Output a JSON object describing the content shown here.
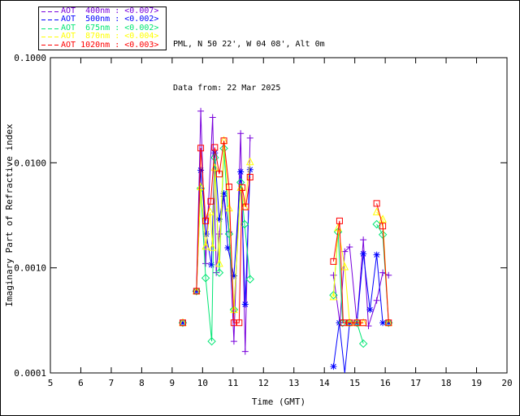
{
  "header": {
    "line1": "PML, N 50 22', W 04 08', Alt 0m",
    "line2": "Data from: 22 Mar 2025"
  },
  "legend": {
    "entries": [
      {
        "text": "AOT  400nm : <0.007>",
        "color": "#7800DC"
      },
      {
        "text": "AOT  500nm : <0.002>",
        "color": "#0000FF"
      },
      {
        "text": "AOT  675nm : <0.002>",
        "color": "#00E673"
      },
      {
        "text": "AOT  870nm : <0.004>",
        "color": "#FFFF00"
      },
      {
        "text": "AOT 1020nm : <0.003>",
        "color": "#FF0000"
      }
    ]
  },
  "chart_data": {
    "type": "line",
    "title": "",
    "xlabel": "Time (GMT)",
    "ylabel": "Imaginary Part of Refractive index",
    "xlim": [
      5,
      20
    ],
    "ylim": [
      0.0001,
      0.1
    ],
    "yscale": "log",
    "grid": false,
    "legend_position": "top-left",
    "x_ticks": [
      5,
      6,
      7,
      8,
      9,
      10,
      11,
      12,
      13,
      14,
      15,
      16,
      17,
      18,
      19,
      20
    ],
    "y_ticks": [
      {
        "value": 0.1,
        "label": "0.1000"
      },
      {
        "value": 0.01,
        "label": "0.0100"
      },
      {
        "value": 0.001,
        "label": "0.0010"
      },
      {
        "value": 0.0001,
        "label": "0.0001"
      }
    ],
    "gap_break_hours": 0.4,
    "series": [
      {
        "name": "AOT 400nm",
        "wavelength": "400nm",
        "aot_value": "<0.007>",
        "color": "#7800DC",
        "marker": "plus",
        "points": [
          [
            9.35,
            0.0003
          ],
          [
            9.8,
            0.0006
          ],
          [
            9.94,
            0.031
          ],
          [
            10.1,
            0.0011
          ],
          [
            10.33,
            0.027
          ],
          [
            10.45,
            0.0009
          ],
          [
            10.55,
            0.0021
          ],
          [
            10.7,
            0.0048
          ],
          [
            10.87,
            0.0022
          ],
          [
            11.03,
            0.0002
          ],
          [
            11.25,
            0.019
          ],
          [
            11.4,
            0.00016
          ],
          [
            11.56,
            0.0172
          ],
          [
            14.3,
            0.00085
          ],
          [
            14.51,
            0.0003
          ],
          [
            14.67,
            0.00143
          ],
          [
            14.83,
            0.00158
          ],
          [
            15.07,
            0.0003
          ],
          [
            15.28,
            0.00185
          ],
          [
            15.45,
            0.00028
          ],
          [
            15.72,
            0.00049
          ],
          [
            15.92,
            0.0009
          ],
          [
            16.11,
            0.00085
          ]
        ]
      },
      {
        "name": "AOT 500nm",
        "wavelength": "500nm",
        "aot_value": "<0.002>",
        "color": "#0000FF",
        "marker": "asterisk",
        "points": [
          [
            9.35,
            0.0003
          ],
          [
            9.8,
            0.0006
          ],
          [
            9.94,
            0.0085
          ],
          [
            10.12,
            0.0021
          ],
          [
            10.29,
            0.00107
          ],
          [
            10.4,
            0.0124
          ],
          [
            10.55,
            0.0029
          ],
          [
            10.7,
            0.0051
          ],
          [
            10.83,
            0.00155
          ],
          [
            11.03,
            0.00084
          ],
          [
            11.25,
            0.0082
          ],
          [
            11.4,
            0.00045
          ],
          [
            11.56,
            0.0086
          ],
          [
            14.3,
            0.000115
          ],
          [
            14.49,
            0.0003
          ],
          [
            14.67,
            6e-05
          ],
          [
            14.83,
            0.0003
          ],
          [
            15.07,
            0.0003
          ],
          [
            15.28,
            0.00136
          ],
          [
            15.5,
            0.0004
          ],
          [
            15.72,
            0.00133
          ],
          [
            15.92,
            0.0003
          ],
          [
            16.11,
            0.0003
          ]
        ]
      },
      {
        "name": "AOT 675nm",
        "wavelength": "675nm",
        "aot_value": "<0.002>",
        "color": "#00E673",
        "marker": "diamond",
        "points": [
          [
            9.35,
            0.0003
          ],
          [
            9.8,
            0.0006
          ],
          [
            9.94,
            0.0057
          ],
          [
            10.1,
            0.0008
          ],
          [
            10.3,
            0.0002
          ],
          [
            10.4,
            0.0112
          ],
          [
            10.55,
            0.0009
          ],
          [
            10.7,
            0.0137
          ],
          [
            10.87,
            0.0021
          ],
          [
            11.03,
            0.0004
          ],
          [
            11.25,
            0.0065
          ],
          [
            11.38,
            0.0026
          ],
          [
            11.56,
            0.00078
          ],
          [
            14.3,
            0.00055
          ],
          [
            14.45,
            0.0022
          ],
          [
            14.6,
            0.0003
          ],
          [
            14.83,
            0.0003
          ],
          [
            15.07,
            0.0003
          ],
          [
            15.28,
            0.00019
          ],
          [
            15.72,
            0.0026
          ],
          [
            15.92,
            0.00207
          ],
          [
            16.11,
            0.0003
          ]
        ]
      },
      {
        "name": "AOT 870nm",
        "wavelength": "870nm",
        "aot_value": "<0.004>",
        "color": "#FFFF00",
        "marker": "triangle",
        "points": [
          [
            9.35,
            0.0003
          ],
          [
            9.8,
            0.0006
          ],
          [
            9.94,
            0.0059
          ],
          [
            10.1,
            0.0016
          ],
          [
            10.25,
            0.0034
          ],
          [
            10.33,
            0.00156
          ],
          [
            10.4,
            0.009
          ],
          [
            10.55,
            0.0011
          ],
          [
            10.7,
            0.0163
          ],
          [
            10.87,
            0.0037
          ],
          [
            11.03,
            0.0004
          ],
          [
            11.25,
            0.0058
          ],
          [
            11.38,
            0.0038
          ],
          [
            11.56,
            0.0102
          ],
          [
            14.3,
            0.00053
          ],
          [
            14.45,
            0.0024
          ],
          [
            14.67,
            0.00102
          ],
          [
            14.83,
            0.0003
          ],
          [
            15.07,
            0.0003
          ],
          [
            15.28,
            0.0003
          ],
          [
            15.72,
            0.0034
          ],
          [
            15.92,
            0.0029
          ],
          [
            16.11,
            0.0003
          ]
        ]
      },
      {
        "name": "AOT 1020nm",
        "wavelength": "1020nm",
        "aot_value": "<0.003>",
        "color": "#FF0000",
        "marker": "square",
        "points": [
          [
            9.35,
            0.0003
          ],
          [
            9.8,
            0.0006
          ],
          [
            9.94,
            0.0138
          ],
          [
            10.1,
            0.0028
          ],
          [
            10.27,
            0.0043
          ],
          [
            10.4,
            0.014
          ],
          [
            10.55,
            0.0078
          ],
          [
            10.7,
            0.0162
          ],
          [
            10.87,
            0.0059
          ],
          [
            11.03,
            0.0003
          ],
          [
            11.2,
            0.0003
          ],
          [
            11.3,
            0.0058
          ],
          [
            11.42,
            0.0038
          ],
          [
            11.56,
            0.0073
          ],
          [
            14.3,
            0.00115
          ],
          [
            14.5,
            0.0028
          ],
          [
            14.62,
            0.0003
          ],
          [
            14.83,
            0.0003
          ],
          [
            15.07,
            0.0003
          ],
          [
            15.28,
            0.0003
          ],
          [
            15.72,
            0.0041
          ],
          [
            15.92,
            0.0025
          ],
          [
            16.11,
            0.0003
          ]
        ]
      }
    ]
  }
}
